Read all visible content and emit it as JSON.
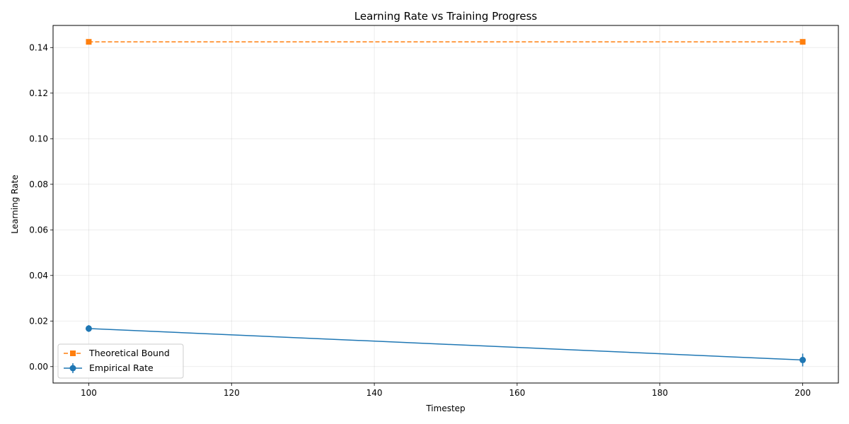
{
  "chart_data": {
    "type": "line",
    "title": "Learning Rate vs Training Progress",
    "xlabel": "Timestep",
    "ylabel": "Learning Rate",
    "xlim": [
      95,
      205
    ],
    "ylim": [
      -0.0072,
      0.1497
    ],
    "xticks": [
      100,
      120,
      140,
      160,
      180,
      200
    ],
    "yticks": [
      0.0,
      0.02,
      0.04,
      0.06,
      0.08,
      0.1,
      0.12,
      0.14
    ],
    "ytick_labels": [
      "0.00",
      "0.02",
      "0.04",
      "0.06",
      "0.08",
      "0.10",
      "0.12",
      "0.14"
    ],
    "grid": true,
    "legend_position": "lower-left",
    "series": [
      {
        "name": "Theoretical Bound",
        "x": [
          100,
          200
        ],
        "y": [
          0.1425,
          0.1425
        ],
        "color": "#ff7f0e",
        "linestyle": "dashed",
        "marker": "square"
      },
      {
        "name": "Empirical Rate",
        "x": [
          100,
          200
        ],
        "y": [
          0.0167,
          0.0029
        ],
        "yerr": [
          0.0015,
          0.0028
        ],
        "color": "#1f77b4",
        "linestyle": "solid",
        "marker": "circle"
      }
    ]
  }
}
